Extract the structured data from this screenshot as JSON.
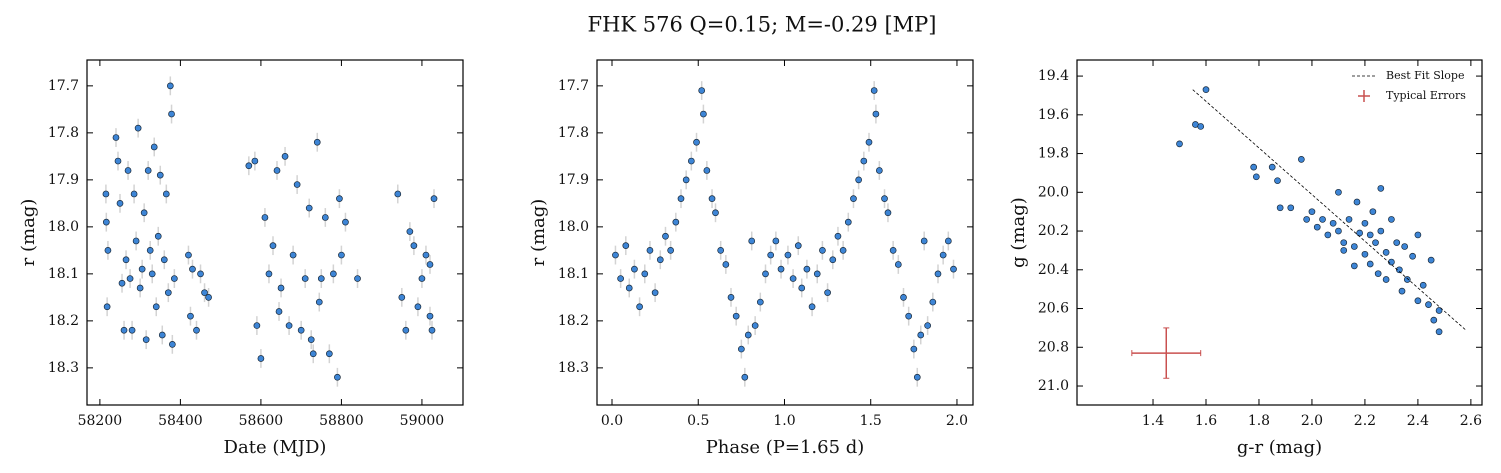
{
  "title": "FHK 576  Q=0.15; M=-0.29 [MP]",
  "chart_data": [
    {
      "type": "scatter",
      "xlabel": "Date (MJD)",
      "ylabel": "r (mag)",
      "xlim": [
        58168,
        59102
      ],
      "ylim": [
        18.379,
        17.645
      ],
      "xticks": [
        58200,
        58400,
        58600,
        58800,
        59000
      ],
      "yticks": [
        17.7,
        17.8,
        17.9,
        {
          "value": 18,
          "label": "18.0"
        },
        18.1,
        18.2,
        18.3
      ],
      "series": [
        {
          "color": "#3d85d6",
          "yerr": 0.02,
          "x": [
            58215,
            58218,
            58216,
            58220,
            58240,
            58245,
            58250,
            58255,
            58260,
            58265,
            58270,
            58275,
            58280,
            58285,
            58290,
            58295,
            58300,
            58305,
            58310,
            58315,
            58320,
            58325,
            58330,
            58335,
            58340,
            58345,
            58350,
            58355,
            58360,
            58365,
            58370,
            58375,
            58378,
            58380,
            58385,
            58420,
            58425,
            58430,
            58440,
            58450,
            58460,
            58470,
            58570,
            58585,
            58590,
            58600,
            58610,
            58620,
            58630,
            58640,
            58645,
            58650,
            58660,
            58670,
            58680,
            58690,
            58700,
            58710,
            58720,
            58725,
            58730,
            58740,
            58745,
            58750,
            58760,
            58770,
            58780,
            58790,
            58795,
            58800,
            58810,
            58840,
            58940,
            58950,
            58960,
            58970,
            58980,
            58990,
            59000,
            59010,
            59020,
            59025,
            59030,
            59020
          ],
          "values": [
            17.93,
            18.17,
            17.99,
            18.05,
            17.81,
            17.86,
            17.95,
            18.12,
            18.22,
            18.07,
            17.88,
            18.11,
            18.22,
            17.93,
            18.03,
            17.79,
            18.13,
            18.09,
            17.97,
            18.24,
            17.88,
            18.05,
            18.1,
            17.83,
            18.17,
            18.02,
            17.89,
            18.23,
            18.07,
            17.93,
            18.14,
            17.7,
            17.76,
            18.25,
            18.11,
            18.06,
            18.19,
            18.09,
            18.22,
            18.1,
            18.14,
            18.15,
            17.87,
            17.86,
            18.21,
            18.28,
            17.98,
            18.1,
            18.04,
            17.88,
            18.18,
            18.13,
            17.85,
            18.21,
            18.06,
            17.91,
            18.22,
            18.11,
            17.96,
            18.24,
            18.27,
            17.82,
            18.16,
            18.11,
            17.98,
            18.27,
            18.1,
            18.32,
            17.94,
            18.06,
            17.99,
            18.11,
            17.93,
            18.15,
            18.22,
            18.01,
            18.04,
            18.17,
            18.11,
            18.06,
            18.19,
            18.22,
            17.94,
            18.08
          ]
        }
      ]
    },
    {
      "type": "scatter",
      "xlabel": "Phase (P=1.65 d)",
      "ylabel": "r (mag)",
      "xlim": [
        -0.087,
        2.093
      ],
      "ylim": [
        18.379,
        17.645
      ],
      "xticks": [
        {
          "value": 0,
          "label": "0.0"
        },
        0.5,
        {
          "value": 1,
          "label": "1.0"
        },
        1.5,
        {
          "value": 2,
          "label": "2.0"
        }
      ],
      "yticks": [
        17.7,
        17.8,
        17.9,
        {
          "value": 18,
          "label": "18.0"
        },
        18.1,
        18.2,
        18.3
      ],
      "series": [
        {
          "color": "#3d85d6",
          "yerr": 0.02,
          "x": [
            0.02,
            0.05,
            0.08,
            0.1,
            0.13,
            0.16,
            0.19,
            0.22,
            0.25,
            0.28,
            0.31,
            0.34,
            0.37,
            0.4,
            0.43,
            0.46,
            0.49,
            0.52,
            0.53,
            0.55,
            0.58,
            0.6,
            0.63,
            0.66,
            0.69,
            0.72,
            0.75,
            0.77,
            0.79,
            0.81,
            0.83,
            0.86,
            0.89,
            0.92,
            0.95,
            0.98,
            1.02,
            1.05,
            1.08,
            1.1,
            1.13,
            1.16,
            1.19,
            1.22,
            1.25,
            1.28,
            1.31,
            1.34,
            1.37,
            1.4,
            1.43,
            1.46,
            1.49,
            1.52,
            1.53,
            1.55,
            1.58,
            1.6,
            1.63,
            1.66,
            1.69,
            1.72,
            1.75,
            1.77,
            1.79,
            1.81,
            1.83,
            1.86,
            1.89,
            1.92,
            1.95,
            1.98
          ],
          "values": [
            18.06,
            18.11,
            18.04,
            18.13,
            18.09,
            18.17,
            18.1,
            18.05,
            18.14,
            18.07,
            18.02,
            18.05,
            17.99,
            17.94,
            17.9,
            17.86,
            17.82,
            17.71,
            17.76,
            17.88,
            17.94,
            17.97,
            18.05,
            18.08,
            18.15,
            18.19,
            18.26,
            18.32,
            18.23,
            18.03,
            18.21,
            18.16,
            18.1,
            18.06,
            18.03,
            18.09,
            18.06,
            18.11,
            18.04,
            18.13,
            18.09,
            18.17,
            18.1,
            18.05,
            18.14,
            18.07,
            18.02,
            18.05,
            17.99,
            17.94,
            17.9,
            17.86,
            17.82,
            17.71,
            17.76,
            17.88,
            17.94,
            17.97,
            18.05,
            18.08,
            18.15,
            18.19,
            18.26,
            18.32,
            18.23,
            18.03,
            18.21,
            18.16,
            18.1,
            18.06,
            18.03,
            18.09
          ]
        }
      ]
    },
    {
      "type": "scatter",
      "xlabel": "g-r (mag)",
      "ylabel": "g (mag)",
      "legend": "upper right",
      "xlim": [
        1.113,
        2.642
      ],
      "ylim": [
        21.098,
        19.317
      ],
      "xticks": [
        1.4,
        1.6,
        1.8,
        {
          "value": 2,
          "label": "2.0"
        },
        2.2,
        2.4,
        2.6
      ],
      "yticks": [
        19.4,
        19.6,
        19.8,
        {
          "value": 20,
          "label": "20.0"
        },
        20.2,
        20.4,
        20.6,
        20.8,
        {
          "value": 21,
          "label": "21.0"
        }
      ],
      "series": [
        {
          "color": "#3d85d6",
          "x": [
            1.5,
            1.56,
            1.58,
            1.6,
            1.78,
            1.79,
            1.85,
            1.87,
            1.88,
            1.92,
            1.96,
            1.98,
            2.0,
            2.02,
            2.04,
            2.06,
            2.08,
            2.1,
            2.1,
            2.12,
            2.14,
            2.16,
            2.17,
            2.18,
            2.2,
            2.2,
            2.22,
            2.23,
            2.24,
            2.25,
            2.26,
            2.28,
            2.28,
            2.3,
            2.3,
            2.32,
            2.33,
            2.34,
            2.35,
            2.36,
            2.38,
            2.4,
            2.4,
            2.42,
            2.44,
            2.45,
            2.46,
            2.48,
            2.48,
            2.26,
            2.16,
            2.22,
            2.12
          ],
          "values": [
            19.75,
            19.65,
            19.66,
            19.47,
            19.87,
            19.92,
            19.87,
            19.94,
            20.08,
            20.08,
            19.83,
            20.14,
            20.1,
            20.18,
            20.14,
            20.22,
            20.16,
            20.2,
            20.0,
            20.26,
            20.14,
            20.28,
            20.05,
            20.21,
            20.32,
            20.16,
            20.37,
            20.1,
            20.26,
            20.42,
            20.2,
            20.31,
            20.45,
            20.36,
            20.14,
            20.26,
            20.4,
            20.51,
            20.28,
            20.45,
            20.33,
            20.56,
            20.22,
            20.48,
            20.58,
            20.35,
            20.66,
            20.61,
            20.72,
            19.98,
            20.38,
            20.22,
            20.3
          ]
        },
        {
          "type": "line",
          "name": "Best Fit Slope",
          "color": "#000000",
          "x": [
            1.55,
            2.58
          ],
          "values": [
            19.47,
            20.71
          ]
        },
        {
          "type": "errorbar",
          "name": "Typical Errors",
          "color": "#c9504f",
          "x": [
            1.45
          ],
          "values": [
            20.83
          ],
          "xerr": 0.13,
          "yerr": 0.13
        }
      ]
    }
  ]
}
